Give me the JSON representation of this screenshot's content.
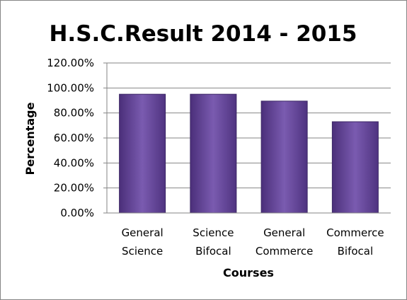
{
  "chart_data": {
    "type": "bar",
    "title": "H.S.C.Result 2014 - 2015",
    "xlabel": "Courses",
    "ylabel": "Percentage",
    "categories": [
      [
        "General",
        "Science"
      ],
      [
        "Science",
        "Bifocal"
      ],
      [
        "General",
        "Commerce"
      ],
      [
        "Commerce",
        "Bifocal"
      ]
    ],
    "values": [
      95,
      95,
      89.5,
      73
    ],
    "ylim": [
      0,
      120
    ],
    "yticks": [
      "0.00%",
      "20.00%",
      "40.00%",
      "60.00%",
      "80.00%",
      "100.00%",
      "120.00%"
    ],
    "grid": true,
    "legend": "none",
    "bar_color": "#6a4b9e"
  }
}
